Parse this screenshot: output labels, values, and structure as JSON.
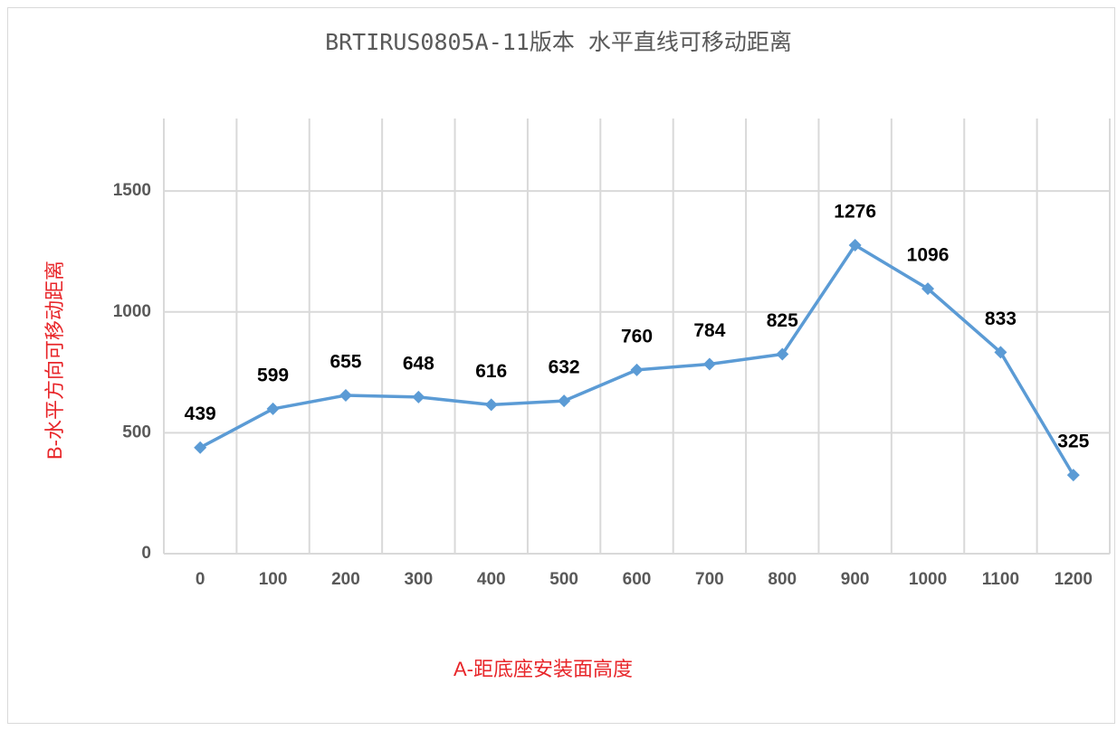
{
  "chart_data": {
    "type": "line",
    "title": "BRTIRUS0805A-11版本 水平直线可移动距离",
    "x_label": "A-距底座安装面高度",
    "y_label": "B-水平方向可移动距离",
    "categories": [
      "0",
      "100",
      "200",
      "300",
      "400",
      "500",
      "600",
      "700",
      "800",
      "900",
      "1000",
      "1100",
      "1200"
    ],
    "series": [
      {
        "name": "B-水平方向可移动距离",
        "color": "#5b9bd5",
        "values": [
          439,
          599,
          655,
          648,
          616,
          632,
          760,
          784,
          825,
          1276,
          1096,
          833,
          325
        ]
      }
    ],
    "ylim": [
      0,
      1800
    ],
    "yticks": [
      0,
      500,
      1000,
      1500
    ],
    "grid": true
  }
}
